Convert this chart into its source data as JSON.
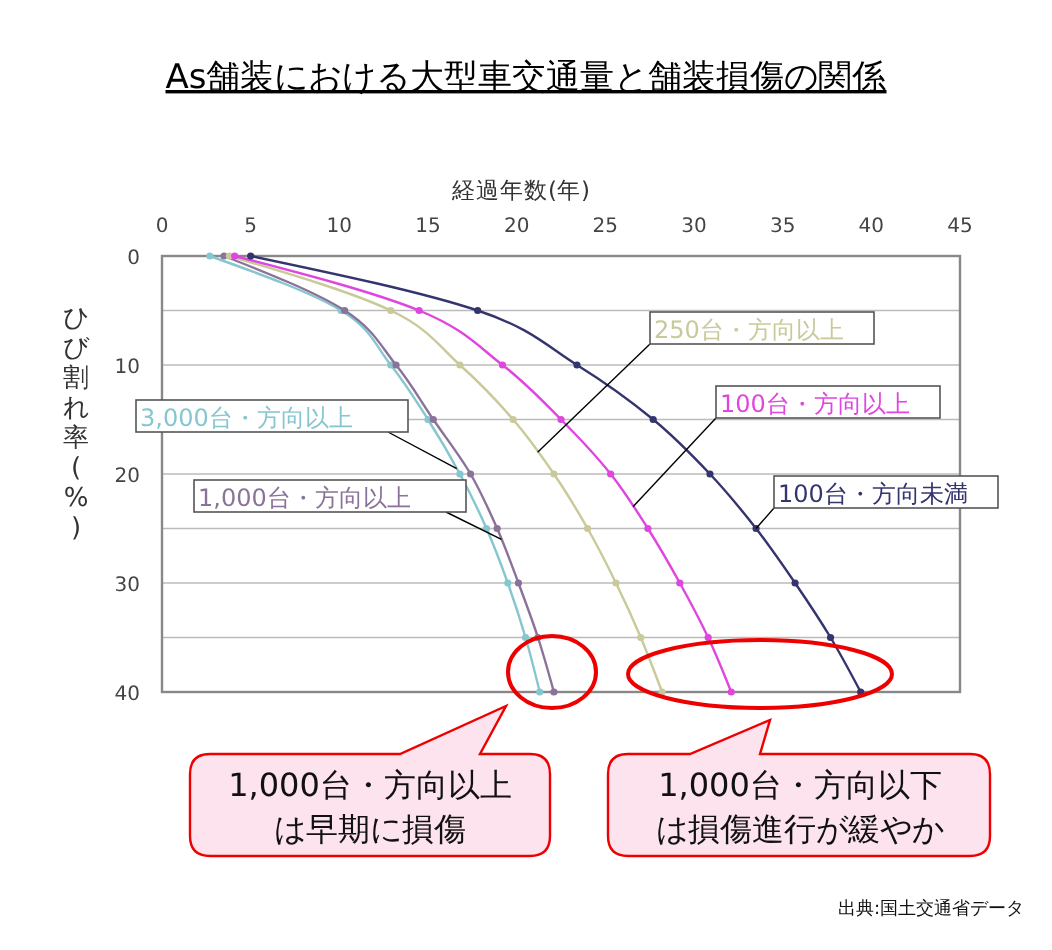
{
  "chart_data": {
    "type": "line",
    "title": "As舗装における大型車交通量と舗装損傷の関係",
    "xlabel": "経過年数(年)",
    "ylabel": "ひび割れ率(%)",
    "xlim": [
      0,
      45
    ],
    "xticks": [
      0,
      5,
      10,
      15,
      20,
      25,
      30,
      35,
      40,
      45
    ],
    "ylim": [
      40,
      0
    ],
    "yticks": [
      0,
      {
        "value": 5,
        "label": null
      },
      10,
      {
        "value": 15,
        "label": null
      },
      20,
      {
        "value": 25,
        "label": null
      },
      30,
      {
        "value": 35,
        "label": null
      },
      40
    ],
    "grid": "y",
    "legend": false,
    "marker": "circle",
    "line_style": "solid",
    "series": [
      {
        "name": "3,000台・方向以上",
        "color": "#86c6cf",
        "x": [
          2.7,
          10.1,
          12.9,
          15.0,
          16.8,
          18.3,
          19.5,
          20.5,
          21.3
        ],
        "values": [
          0,
          5,
          10,
          15,
          20,
          25,
          30,
          35,
          40
        ]
      },
      {
        "name": "1,000台・方向以上",
        "color": "#8a7299",
        "x": [
          3.5,
          10.3,
          13.2,
          15.3,
          17.4,
          18.9,
          20.1,
          21.2,
          22.1
        ],
        "values": [
          0,
          5,
          10,
          15,
          20,
          25,
          30,
          35,
          40
        ]
      },
      {
        "name": "250台・方向以上",
        "color": "#c9c99a",
        "x": [
          3.8,
          12.9,
          16.8,
          19.8,
          22.1,
          24.0,
          25.6,
          27.0,
          28.2
        ],
        "values": [
          0,
          5,
          10,
          15,
          20,
          25,
          30,
          35,
          40
        ]
      },
      {
        "name": "100台・方向以上",
        "color": "#e045e0",
        "x": [
          4.1,
          14.5,
          19.2,
          22.5,
          25.3,
          27.4,
          29.2,
          30.8,
          32.1
        ],
        "values": [
          0,
          5,
          10,
          15,
          20,
          25,
          30,
          35,
          40
        ]
      },
      {
        "name": "100台・方向未満",
        "color": "#34346e",
        "x": [
          5.0,
          17.8,
          23.4,
          27.7,
          30.9,
          33.5,
          35.7,
          37.7,
          39.4
        ],
        "values": [
          0,
          5,
          10,
          15,
          20,
          25,
          30,
          35,
          40
        ]
      }
    ],
    "annotations": [
      "1,000台・方向以上は早期に損傷",
      "1,000台・方向以下は損傷進行が緩やか",
      "出典:国土交通省データ"
    ]
  }
}
